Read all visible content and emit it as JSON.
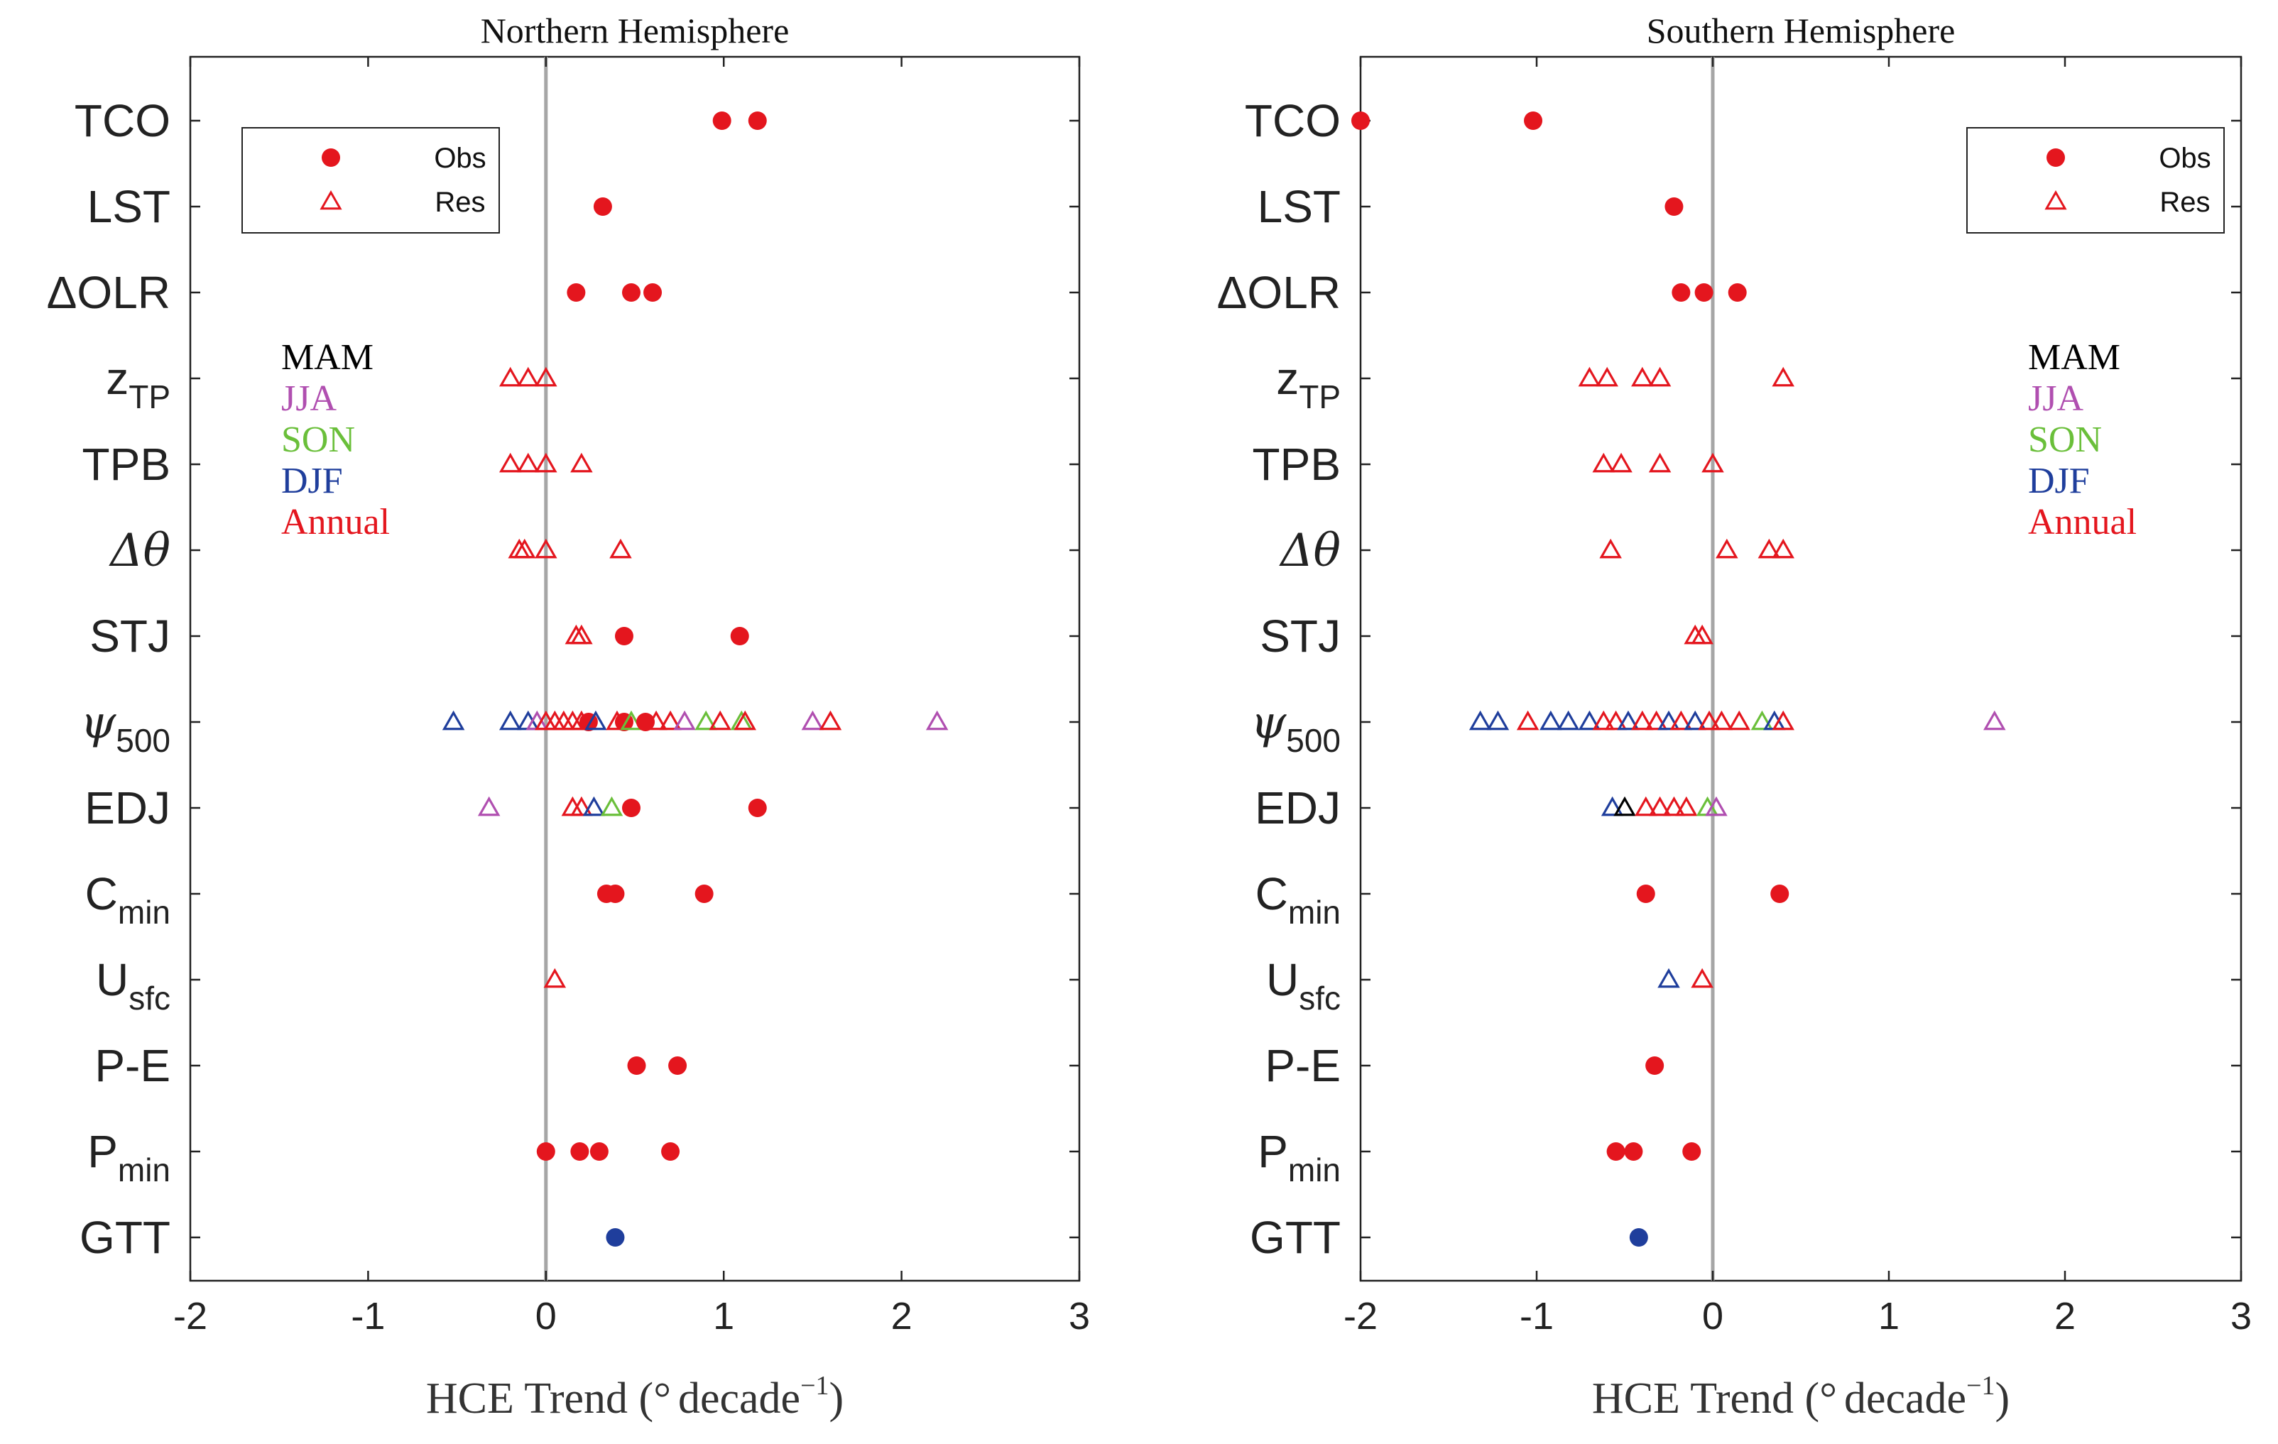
{
  "chart_data": [
    {
      "type": "scatter",
      "title": "Northern Hemisphere",
      "xlabel_main": "HCE Trend (",
      "xlabel_deg": "°",
      "xlabel_unit": "decade",
      "xlabel_exp": "−1",
      "xlabel_close": ")",
      "xlim": [
        -2,
        3
      ],
      "xticks": [
        -2,
        -1,
        0,
        1,
        2,
        3
      ],
      "xtick_labels": [
        "-2",
        "-1",
        "0",
        "1",
        "2",
        "3"
      ],
      "metrics": [
        {
          "main": "TCO",
          "sub": ""
        },
        {
          "main": "LST",
          "sub": ""
        },
        {
          "main": "ΔOLR",
          "sub": ""
        },
        {
          "main": "z",
          "sub": "TP"
        },
        {
          "main": "TPB",
          "sub": ""
        },
        {
          "main": "Δθ",
          "sub": ""
        },
        {
          "main": "STJ",
          "sub": ""
        },
        {
          "main": "ψ",
          "sub": "500"
        },
        {
          "main": "EDJ",
          "sub": ""
        },
        {
          "main": "C",
          "sub": "min"
        },
        {
          "main": "U",
          "sub": "sfc"
        },
        {
          "main": "P-E",
          "sub": ""
        },
        {
          "main": "P",
          "sub": "min"
        },
        {
          "main": "GTT",
          "sub": ""
        }
      ],
      "legend": {
        "position": "top-left",
        "obs_label": "Obs",
        "res_label": "Res"
      },
      "seasons": {
        "position": "left",
        "items": [
          {
            "label": "MAM",
            "color": "#000000"
          },
          {
            "label": "JJA",
            "color": "#b04fb0"
          },
          {
            "label": "SON",
            "color": "#6abf3a"
          },
          {
            "label": "DJF",
            "color": "#1f3e9c"
          },
          {
            "label": "Annual",
            "color": "#e4161e"
          }
        ]
      },
      "points": [
        {
          "metric": "TCO",
          "x": 0.99,
          "kind": "obs",
          "season": "Annual"
        },
        {
          "metric": "TCO",
          "x": 1.19,
          "kind": "obs",
          "season": "Annual"
        },
        {
          "metric": "LST",
          "x": 0.32,
          "kind": "obs",
          "season": "Annual"
        },
        {
          "metric": "ΔOLR",
          "x": 0.17,
          "kind": "obs",
          "season": "Annual"
        },
        {
          "metric": "ΔOLR",
          "x": 0.48,
          "kind": "obs",
          "season": "Annual"
        },
        {
          "metric": "ΔOLR",
          "x": 0.6,
          "kind": "obs",
          "season": "Annual"
        },
        {
          "metric": "z",
          "x": -0.2,
          "kind": "res",
          "season": "Annual"
        },
        {
          "metric": "z",
          "x": -0.1,
          "kind": "res",
          "season": "Annual"
        },
        {
          "metric": "z",
          "x": 0.0,
          "kind": "res",
          "season": "Annual"
        },
        {
          "metric": "TPB",
          "x": -0.2,
          "kind": "res",
          "season": "Annual"
        },
        {
          "metric": "TPB",
          "x": -0.1,
          "kind": "res",
          "season": "Annual"
        },
        {
          "metric": "TPB",
          "x": 0.0,
          "kind": "res",
          "season": "Annual"
        },
        {
          "metric": "TPB",
          "x": 0.2,
          "kind": "res",
          "season": "Annual"
        },
        {
          "metric": "Δθ",
          "x": -0.15,
          "kind": "res",
          "season": "Annual"
        },
        {
          "metric": "Δθ",
          "x": -0.12,
          "kind": "res",
          "season": "Annual"
        },
        {
          "metric": "Δθ",
          "x": 0.0,
          "kind": "res",
          "season": "Annual"
        },
        {
          "metric": "Δθ",
          "x": 0.42,
          "kind": "res",
          "season": "Annual"
        },
        {
          "metric": "STJ",
          "x": 0.17,
          "kind": "res",
          "season": "Annual"
        },
        {
          "metric": "STJ",
          "x": 0.2,
          "kind": "res",
          "season": "Annual"
        },
        {
          "metric": "STJ",
          "x": 0.44,
          "kind": "obs",
          "season": "Annual"
        },
        {
          "metric": "STJ",
          "x": 1.09,
          "kind": "obs",
          "season": "Annual"
        },
        {
          "metric": "ψ",
          "x": -0.52,
          "kind": "res",
          "season": "DJF"
        },
        {
          "metric": "ψ",
          "x": -0.2,
          "kind": "res",
          "season": "DJF"
        },
        {
          "metric": "ψ",
          "x": -0.1,
          "kind": "res",
          "season": "DJF"
        },
        {
          "metric": "ψ",
          "x": -0.05,
          "kind": "res",
          "season": "JJA"
        },
        {
          "metric": "ψ",
          "x": 0.0,
          "kind": "res",
          "season": "Annual"
        },
        {
          "metric": "ψ",
          "x": 0.05,
          "kind": "res",
          "season": "Annual"
        },
        {
          "metric": "ψ",
          "x": 0.1,
          "kind": "res",
          "season": "Annual"
        },
        {
          "metric": "ψ",
          "x": 0.15,
          "kind": "res",
          "season": "Annual"
        },
        {
          "metric": "ψ",
          "x": 0.2,
          "kind": "res",
          "season": "Annual"
        },
        {
          "metric": "ψ",
          "x": 0.24,
          "kind": "obs",
          "season": "Annual"
        },
        {
          "metric": "ψ",
          "x": 0.28,
          "kind": "res",
          "season": "DJF"
        },
        {
          "metric": "ψ",
          "x": 0.4,
          "kind": "res",
          "season": "Annual"
        },
        {
          "metric": "ψ",
          "x": 0.44,
          "kind": "obs",
          "season": "Annual"
        },
        {
          "metric": "ψ",
          "x": 0.48,
          "kind": "res",
          "season": "SON"
        },
        {
          "metric": "ψ",
          "x": 0.56,
          "kind": "obs",
          "season": "Annual"
        },
        {
          "metric": "ψ",
          "x": 0.62,
          "kind": "res",
          "season": "Annual"
        },
        {
          "metric": "ψ",
          "x": 0.7,
          "kind": "res",
          "season": "Annual"
        },
        {
          "metric": "ψ",
          "x": 0.78,
          "kind": "res",
          "season": "JJA"
        },
        {
          "metric": "ψ",
          "x": 0.9,
          "kind": "res",
          "season": "SON"
        },
        {
          "metric": "ψ",
          "x": 0.98,
          "kind": "res",
          "season": "Annual"
        },
        {
          "metric": "ψ",
          "x": 1.1,
          "kind": "res",
          "season": "SON"
        },
        {
          "metric": "ψ",
          "x": 1.12,
          "kind": "res",
          "season": "Annual"
        },
        {
          "metric": "ψ",
          "x": 1.5,
          "kind": "res",
          "season": "JJA"
        },
        {
          "metric": "ψ",
          "x": 1.6,
          "kind": "res",
          "season": "Annual"
        },
        {
          "metric": "ψ",
          "x": 2.2,
          "kind": "res",
          "season": "JJA"
        },
        {
          "metric": "EDJ",
          "x": -0.32,
          "kind": "res",
          "season": "JJA"
        },
        {
          "metric": "EDJ",
          "x": 0.15,
          "kind": "res",
          "season": "Annual"
        },
        {
          "metric": "EDJ",
          "x": 0.2,
          "kind": "res",
          "season": "Annual"
        },
        {
          "metric": "EDJ",
          "x": 0.27,
          "kind": "res",
          "season": "DJF"
        },
        {
          "metric": "EDJ",
          "x": 0.37,
          "kind": "res",
          "season": "SON"
        },
        {
          "metric": "EDJ",
          "x": 0.48,
          "kind": "obs",
          "season": "Annual"
        },
        {
          "metric": "EDJ",
          "x": 1.19,
          "kind": "obs",
          "season": "Annual"
        },
        {
          "metric": "C",
          "x": 0.34,
          "kind": "obs",
          "season": "Annual"
        },
        {
          "metric": "C",
          "x": 0.39,
          "kind": "obs",
          "season": "Annual"
        },
        {
          "metric": "C",
          "x": 0.89,
          "kind": "obs",
          "season": "Annual"
        },
        {
          "metric": "U",
          "x": 0.05,
          "kind": "res",
          "season": "Annual"
        },
        {
          "metric": "P-E",
          "x": 0.51,
          "kind": "obs",
          "season": "Annual"
        },
        {
          "metric": "P-E",
          "x": 0.74,
          "kind": "obs",
          "season": "Annual"
        },
        {
          "metric": "P",
          "x": 0.0,
          "kind": "obs",
          "season": "Annual"
        },
        {
          "metric": "P",
          "x": 0.19,
          "kind": "obs",
          "season": "Annual"
        },
        {
          "metric": "P",
          "x": 0.3,
          "kind": "obs",
          "season": "Annual"
        },
        {
          "metric": "P",
          "x": 0.7,
          "kind": "obs",
          "season": "Annual"
        },
        {
          "metric": "GTT",
          "x": 0.39,
          "kind": "obs",
          "season": "DJF"
        }
      ]
    },
    {
      "type": "scatter",
      "title": "Southern Hemisphere",
      "xlabel_main": "HCE Trend (",
      "xlabel_deg": "°",
      "xlabel_unit": "decade",
      "xlabel_exp": "−1",
      "xlabel_close": ")",
      "xlim": [
        -2,
        3
      ],
      "xticks": [
        -2,
        -1,
        0,
        1,
        2,
        3
      ],
      "xtick_labels": [
        "-2",
        "-1",
        "0",
        "1",
        "2",
        "3"
      ],
      "metrics": [
        {
          "main": "TCO",
          "sub": ""
        },
        {
          "main": "LST",
          "sub": ""
        },
        {
          "main": "ΔOLR",
          "sub": ""
        },
        {
          "main": "z",
          "sub": "TP"
        },
        {
          "main": "TPB",
          "sub": ""
        },
        {
          "main": "Δθ",
          "sub": ""
        },
        {
          "main": "STJ",
          "sub": ""
        },
        {
          "main": "ψ",
          "sub": "500"
        },
        {
          "main": "EDJ",
          "sub": ""
        },
        {
          "main": "C",
          "sub": "min"
        },
        {
          "main": "U",
          "sub": "sfc"
        },
        {
          "main": "P-E",
          "sub": ""
        },
        {
          "main": "P",
          "sub": "min"
        },
        {
          "main": "GTT",
          "sub": ""
        }
      ],
      "legend": {
        "position": "top-right",
        "obs_label": "Obs",
        "res_label": "Res"
      },
      "seasons": {
        "position": "right",
        "items": [
          {
            "label": "MAM",
            "color": "#000000"
          },
          {
            "label": "JJA",
            "color": "#b04fb0"
          },
          {
            "label": "SON",
            "color": "#6abf3a"
          },
          {
            "label": "DJF",
            "color": "#1f3e9c"
          },
          {
            "label": "Annual",
            "color": "#e4161e"
          }
        ]
      },
      "points": [
        {
          "metric": "TCO",
          "x": -2.0,
          "kind": "obs",
          "season": "Annual"
        },
        {
          "metric": "TCO",
          "x": -1.02,
          "kind": "obs",
          "season": "Annual"
        },
        {
          "metric": "LST",
          "x": -0.22,
          "kind": "obs",
          "season": "Annual"
        },
        {
          "metric": "ΔOLR",
          "x": -0.18,
          "kind": "obs",
          "season": "Annual"
        },
        {
          "metric": "ΔOLR",
          "x": -0.05,
          "kind": "obs",
          "season": "Annual"
        },
        {
          "metric": "ΔOLR",
          "x": 0.14,
          "kind": "obs",
          "season": "Annual"
        },
        {
          "metric": "z",
          "x": -0.7,
          "kind": "res",
          "season": "Annual"
        },
        {
          "metric": "z",
          "x": -0.6,
          "kind": "res",
          "season": "Annual"
        },
        {
          "metric": "z",
          "x": -0.4,
          "kind": "res",
          "season": "Annual"
        },
        {
          "metric": "z",
          "x": -0.3,
          "kind": "res",
          "season": "Annual"
        },
        {
          "metric": "z",
          "x": 0.4,
          "kind": "res",
          "season": "Annual"
        },
        {
          "metric": "TPB",
          "x": -0.62,
          "kind": "res",
          "season": "Annual"
        },
        {
          "metric": "TPB",
          "x": -0.52,
          "kind": "res",
          "season": "Annual"
        },
        {
          "metric": "TPB",
          "x": -0.3,
          "kind": "res",
          "season": "Annual"
        },
        {
          "metric": "TPB",
          "x": 0.0,
          "kind": "res",
          "season": "Annual"
        },
        {
          "metric": "Δθ",
          "x": -0.58,
          "kind": "res",
          "season": "Annual"
        },
        {
          "metric": "Δθ",
          "x": 0.08,
          "kind": "res",
          "season": "Annual"
        },
        {
          "metric": "Δθ",
          "x": 0.32,
          "kind": "res",
          "season": "Annual"
        },
        {
          "metric": "Δθ",
          "x": 0.4,
          "kind": "res",
          "season": "Annual"
        },
        {
          "metric": "STJ",
          "x": -0.1,
          "kind": "res",
          "season": "Annual"
        },
        {
          "metric": "STJ",
          "x": -0.06,
          "kind": "res",
          "season": "Annual"
        },
        {
          "metric": "ψ",
          "x": -1.32,
          "kind": "res",
          "season": "DJF"
        },
        {
          "metric": "ψ",
          "x": -1.22,
          "kind": "res",
          "season": "DJF"
        },
        {
          "metric": "ψ",
          "x": -1.05,
          "kind": "res",
          "season": "Annual"
        },
        {
          "metric": "ψ",
          "x": -0.92,
          "kind": "res",
          "season": "DJF"
        },
        {
          "metric": "ψ",
          "x": -0.82,
          "kind": "res",
          "season": "DJF"
        },
        {
          "metric": "ψ",
          "x": -0.7,
          "kind": "res",
          "season": "DJF"
        },
        {
          "metric": "ψ",
          "x": -0.62,
          "kind": "res",
          "season": "Annual"
        },
        {
          "metric": "ψ",
          "x": -0.55,
          "kind": "res",
          "season": "Annual"
        },
        {
          "metric": "ψ",
          "x": -0.48,
          "kind": "res",
          "season": "DJF"
        },
        {
          "metric": "ψ",
          "x": -0.4,
          "kind": "res",
          "season": "Annual"
        },
        {
          "metric": "ψ",
          "x": -0.32,
          "kind": "res",
          "season": "Annual"
        },
        {
          "metric": "ψ",
          "x": -0.25,
          "kind": "res",
          "season": "DJF"
        },
        {
          "metric": "ψ",
          "x": -0.18,
          "kind": "res",
          "season": "Annual"
        },
        {
          "metric": "ψ",
          "x": -0.1,
          "kind": "res",
          "season": "DJF"
        },
        {
          "metric": "ψ",
          "x": -0.02,
          "kind": "res",
          "season": "Annual"
        },
        {
          "metric": "ψ",
          "x": 0.05,
          "kind": "res",
          "season": "Annual"
        },
        {
          "metric": "ψ",
          "x": 0.15,
          "kind": "res",
          "season": "Annual"
        },
        {
          "metric": "ψ",
          "x": 0.28,
          "kind": "res",
          "season": "SON"
        },
        {
          "metric": "ψ",
          "x": 0.35,
          "kind": "res",
          "season": "DJF"
        },
        {
          "metric": "ψ",
          "x": 0.4,
          "kind": "res",
          "season": "Annual"
        },
        {
          "metric": "ψ",
          "x": 1.6,
          "kind": "res",
          "season": "JJA"
        },
        {
          "metric": "EDJ",
          "x": -0.57,
          "kind": "res",
          "season": "DJF"
        },
        {
          "metric": "EDJ",
          "x": -0.5,
          "kind": "res",
          "season": "MAM"
        },
        {
          "metric": "EDJ",
          "x": -0.38,
          "kind": "res",
          "season": "Annual"
        },
        {
          "metric": "EDJ",
          "x": -0.3,
          "kind": "res",
          "season": "Annual"
        },
        {
          "metric": "EDJ",
          "x": -0.22,
          "kind": "res",
          "season": "Annual"
        },
        {
          "metric": "EDJ",
          "x": -0.15,
          "kind": "res",
          "season": "Annual"
        },
        {
          "metric": "EDJ",
          "x": -0.03,
          "kind": "res",
          "season": "SON"
        },
        {
          "metric": "EDJ",
          "x": 0.02,
          "kind": "res",
          "season": "JJA"
        },
        {
          "metric": "C",
          "x": -0.38,
          "kind": "obs",
          "season": "Annual"
        },
        {
          "metric": "C",
          "x": 0.38,
          "kind": "obs",
          "season": "Annual"
        },
        {
          "metric": "U",
          "x": -0.25,
          "kind": "res",
          "season": "DJF"
        },
        {
          "metric": "U",
          "x": -0.06,
          "kind": "res",
          "season": "Annual"
        },
        {
          "metric": "P-E",
          "x": -0.33,
          "kind": "obs",
          "season": "Annual"
        },
        {
          "metric": "P",
          "x": -0.55,
          "kind": "obs",
          "season": "Annual"
        },
        {
          "metric": "P",
          "x": -0.45,
          "kind": "obs",
          "season": "Annual"
        },
        {
          "metric": "P",
          "x": -0.12,
          "kind": "obs",
          "season": "Annual"
        },
        {
          "metric": "GTT",
          "x": -0.42,
          "kind": "obs",
          "season": "DJF"
        }
      ]
    }
  ]
}
